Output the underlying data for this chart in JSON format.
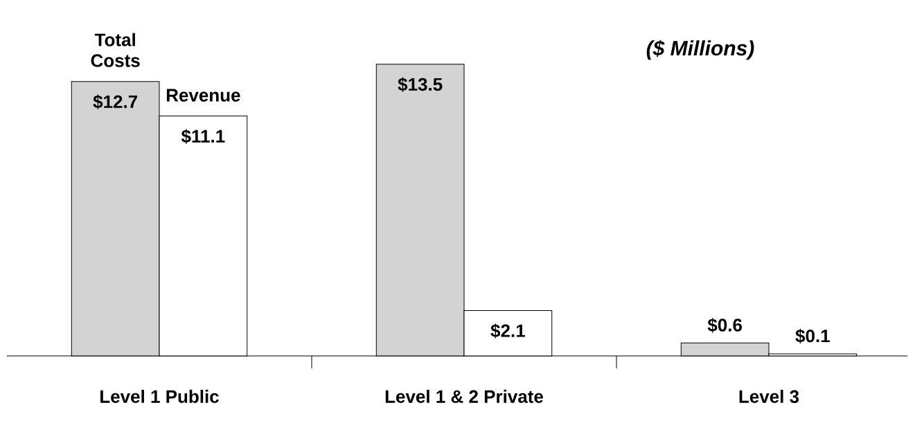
{
  "chart_data": {
    "type": "bar",
    "categories": [
      "Level 1 Public",
      "Level 1 & 2 Private",
      "Level 3"
    ],
    "annotations": [
      "($ Millions)"
    ],
    "data_labels": true,
    "series": [
      {
        "name": "Total Costs",
        "color": "#d3d3d3",
        "values": [
          12.7,
          13.5,
          0.6
        ],
        "value_labels": [
          "$12.7",
          "$13.5",
          "$0.6"
        ]
      },
      {
        "name": "Revenue",
        "color": "#ffffff",
        "values": [
          11.1,
          2.1,
          0.1
        ],
        "value_labels": [
          "$11.1",
          "$2.1",
          "$0.1"
        ]
      }
    ]
  }
}
